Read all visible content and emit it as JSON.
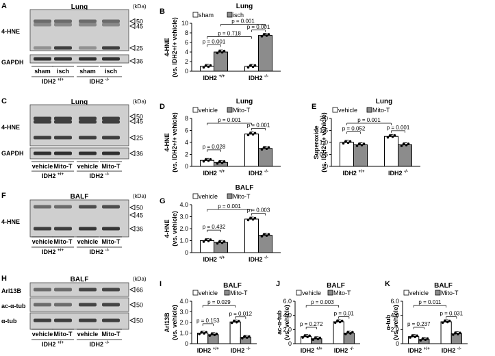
{
  "panels": {
    "A": {
      "letter": "A",
      "title": "Lung",
      "kda": "(kDa)",
      "bands": [
        "4-HNE",
        "GAPDH"
      ],
      "markers": [
        "50",
        "45",
        "25",
        "36"
      ],
      "lanes": [
        "sham",
        "isch",
        "sham",
        "isch"
      ],
      "groups": [
        "IDH2 +/+",
        "IDH2 -/-"
      ]
    },
    "C": {
      "letter": "C",
      "title": "Lung",
      "kda": "(kDa)",
      "bands": [
        "4-HNE",
        "GAPDH"
      ],
      "markers": [
        "50",
        "45",
        "25",
        "36"
      ],
      "lanes": [
        "vehicle",
        "Mito-T",
        "vehicle",
        "Mito-T"
      ],
      "groups": [
        "IDH2 +/+",
        "IDH2 -/-"
      ]
    },
    "F": {
      "letter": "F",
      "title": "BALF",
      "kda": "(kDa)",
      "bands": [
        "4-HNE"
      ],
      "markers": [
        "50",
        "45",
        "36"
      ],
      "lanes": [
        "vehicle",
        "Mito-T",
        "vehicle",
        "Mito-T"
      ],
      "groups": [
        "IDH2 +/+",
        "IDH2 -/-"
      ]
    },
    "H": {
      "letter": "H",
      "title": "BALF",
      "kda": "(kDa)",
      "bands": [
        "Arl13B",
        "ac-α-tub",
        "α-tub"
      ],
      "markers": [
        "66",
        "50",
        "50"
      ],
      "lanes": [
        "vehicle",
        "Mito-T",
        "vehicle",
        "Mito-T"
      ],
      "groups": [
        "IDH2 +/+",
        "IDH2 -/-"
      ]
    }
  },
  "chart_data": [
    {
      "id": "B",
      "type": "bar",
      "title": "Lung",
      "ylabel": "4-HNE (vs. IDH2+/+ vehicle)",
      "ylim": [
        0,
        10
      ],
      "yticks": [
        "0",
        "2",
        "4",
        "6",
        "8",
        "10"
      ],
      "categories": [
        "IDH2 +/+",
        "IDH2 -/-"
      ],
      "series": [
        {
          "name": "sham",
          "values": [
            1.0,
            1.0
          ],
          "color": "#ffffff"
        },
        {
          "name": "isch",
          "values": [
            4.0,
            7.5
          ],
          "color": "#8c8c8c"
        }
      ],
      "pvalues": [
        "p = 0.001",
        "p = 0.718",
        "p = 0.001",
        "p = 0.001"
      ]
    },
    {
      "id": "D",
      "type": "bar",
      "title": "",
      "ylabel": "4-HNE (vs. IDH2+/+ vehicle)",
      "ylim": [
        0,
        8
      ],
      "yticks": [
        "0",
        "2",
        "4",
        "6",
        "8"
      ],
      "categories": [
        "IDH2 +/+",
        "IDH2 -/-"
      ],
      "series": [
        {
          "name": "vehicle",
          "values": [
            1.0,
            5.4
          ],
          "color": "#ffffff"
        },
        {
          "name": "Mito-T",
          "values": [
            0.65,
            3.0
          ],
          "color": "#8c8c8c"
        }
      ],
      "pvalues": [
        "p = 0.028",
        "p = 0.001",
        "p = 0.001"
      ]
    },
    {
      "id": "E",
      "type": "bar",
      "title": "Lung",
      "ylabel": "Superoxide (vs. IDH2+/+ vehicle)",
      "ylim": [
        0,
        2.0
      ],
      "yticks": [
        "0",
        "0.5",
        "1.0",
        "1.5",
        "2.0"
      ],
      "categories": [
        "IDH2 +/+",
        "IDH2 -/-"
      ],
      "series": [
        {
          "name": "vehicle",
          "values": [
            1.0,
            1.25
          ],
          "color": "#ffffff"
        },
        {
          "name": "Mito-T",
          "values": [
            0.9,
            0.9
          ],
          "color": "#8c8c8c"
        }
      ],
      "pvalues": [
        "p = 0.052",
        "p = 0.001",
        "p = 0.001"
      ]
    },
    {
      "id": "G",
      "type": "bar",
      "title": "BALF",
      "ylabel": "4-HNE (vs. vehicle)",
      "ylim": [
        0,
        4.0
      ],
      "yticks": [
        "0",
        "1.0",
        "2.0",
        "3.0",
        "4.0"
      ],
      "categories": [
        "IDH2 +/+",
        "IDH2 -/-"
      ],
      "series": [
        {
          "name": "vehicle",
          "values": [
            1.0,
            2.8
          ],
          "color": "#ffffff"
        },
        {
          "name": "Mito-T",
          "values": [
            0.85,
            1.45
          ],
          "color": "#8c8c8c"
        }
      ],
      "pvalues": [
        "p = 0.432",
        "p = 0.001",
        "p = 0.003"
      ]
    },
    {
      "id": "I",
      "type": "bar",
      "title": "BALF",
      "ylabel": "Arl13B (vs. vehicle)",
      "ylim": [
        0,
        4.0
      ],
      "yticks": [
        "0",
        "1.0",
        "2.0",
        "3.0",
        "4.0"
      ],
      "categories": [
        "IDH2 +/+",
        "IDH2 -/-"
      ],
      "series": [
        {
          "name": "vehicle",
          "values": [
            1.0,
            2.05
          ],
          "color": "#ffffff"
        },
        {
          "name": "Mito-T",
          "values": [
            0.85,
            0.6
          ],
          "color": "#8c8c8c"
        }
      ],
      "pvalues": [
        "p = 0.153",
        "p = 0.029",
        "p = 0.012"
      ]
    },
    {
      "id": "J",
      "type": "bar",
      "title": "BALF",
      "ylabel": "ac-α-tub (vs. vehicle)",
      "ylim": [
        0,
        6.0
      ],
      "yticks": [
        "0",
        "2.0",
        "4.0",
        "6.0"
      ],
      "categories": [
        "IDH2 +/+",
        "IDH2 -/-"
      ],
      "series": [
        {
          "name": "vehicle",
          "values": [
            1.0,
            3.1
          ],
          "color": "#ffffff"
        },
        {
          "name": "Mito-T",
          "values": [
            0.7,
            1.5
          ],
          "color": "#8c8c8c"
        }
      ],
      "pvalues": [
        "p = 0.272",
        "p = 0.003",
        "p = 0.01"
      ]
    },
    {
      "id": "K",
      "type": "bar",
      "title": "BALF",
      "ylabel": "α-tub (vs. vehicle)",
      "ylim": [
        0,
        6.0
      ],
      "yticks": [
        "0",
        "2.0",
        "4.0",
        "6.0"
      ],
      "categories": [
        "IDH2 +/+",
        "IDH2 -/-"
      ],
      "series": [
        {
          "name": "vehicle",
          "values": [
            1.0,
            3.1
          ],
          "color": "#ffffff"
        },
        {
          "name": "Mito-T",
          "values": [
            0.6,
            1.4
          ],
          "color": "#8c8c8c"
        }
      ],
      "pvalues": [
        "p = 0.237",
        "p = 0.011",
        "p = 0.031"
      ]
    }
  ]
}
